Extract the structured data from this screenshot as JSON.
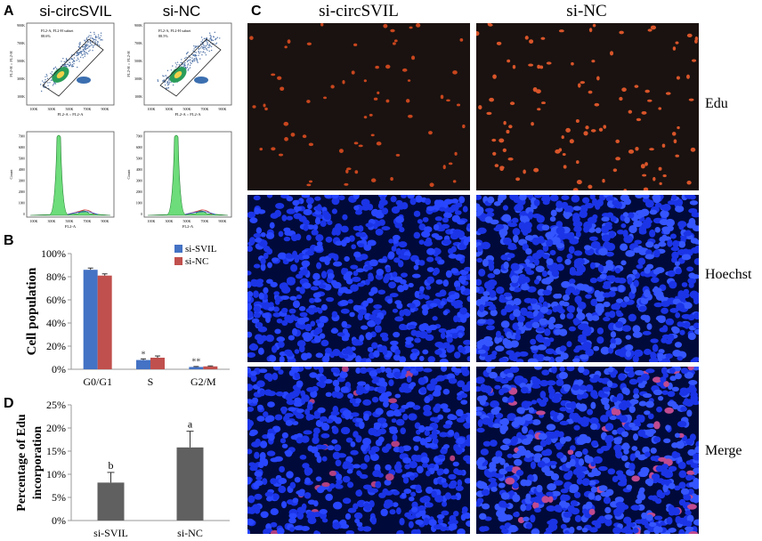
{
  "panel_letters": {
    "a": "A",
    "b": "B",
    "c": "C",
    "d": "D"
  },
  "panel_a": {
    "columns": [
      "si-circSVIL",
      "si-NC"
    ],
    "scatter_gate_label": "FL2-A, FL2-H subset",
    "scatter_gate_values": [
      "88.6%",
      "88.5%"
    ],
    "scatter_xlabel": "FL2-A :: FL2-A",
    "scatter_ylabel": "FL2-H :: FL2-H",
    "hist_xlabel": "FL2-A",
    "hist_ylabel": "Count",
    "x_ticks": [
      "100K",
      "300K",
      "500K",
      "700K",
      "900K"
    ],
    "y_ticks": [
      "100K",
      "300K",
      "500K",
      "700K",
      "900K"
    ],
    "hist_x_ticks": [
      "100K",
      "300K",
      "500K",
      "700K",
      "900K"
    ],
    "hist_y_ticks": [
      "0",
      "1000",
      "2000",
      "3000",
      "4000",
      "5000",
      "6000",
      "7000"
    ]
  },
  "panel_c": {
    "columns": [
      "si-circSVIL",
      "si-NC"
    ],
    "rows": [
      "Edu",
      "Hoechst",
      "Merge"
    ]
  },
  "chart_data": [
    {
      "id": "B",
      "type": "bar",
      "categories": [
        "G0/G1",
        "S",
        "G2/M"
      ],
      "series": [
        {
          "name": "si-SVIL",
          "values": [
            86,
            8,
            2
          ],
          "errors": [
            1.5,
            1.0,
            0.4
          ]
        },
        {
          "name": "si-NC",
          "values": [
            81,
            10,
            2.5
          ],
          "errors": [
            1.5,
            1.5,
            0.4
          ]
        }
      ],
      "annotations": [
        "",
        "*",
        "**"
      ],
      "ylabel": "Cell population",
      "ylim": [
        0,
        100
      ],
      "yticks": [
        "0%",
        "20%",
        "40%",
        "60%",
        "80%",
        "100%"
      ],
      "colors": [
        "#4472c4",
        "#c0504d"
      ],
      "legend": "top-right"
    },
    {
      "id": "D",
      "type": "bar",
      "categories": [
        "si-SVIL",
        "si-NC"
      ],
      "values": [
        8.2,
        15.8
      ],
      "errors": [
        2.2,
        3.5
      ],
      "annotations": [
        "b",
        "a"
      ],
      "ylabel": "Percentage of Edu incorporation",
      "ylim": [
        0,
        25
      ],
      "yticks": [
        "0%",
        "5%",
        "10%",
        "15%",
        "20%",
        "25%"
      ],
      "colors": [
        "#606060"
      ]
    }
  ]
}
